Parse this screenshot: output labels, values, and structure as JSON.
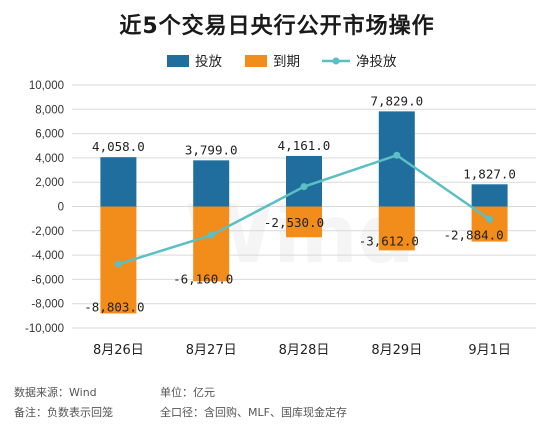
{
  "title": "近5个交易日央行公开市场操作",
  "watermark": "Wind",
  "footer": {
    "source": "数据来源：Wind",
    "unit": "单位：亿元",
    "note": "备注：负数表示回笼",
    "scope": "全口径：含回购、MLF、国库现金定存"
  },
  "colors": {
    "invest": "#1f6e9e",
    "expire": "#f28c1a",
    "net": "#5bbfc3",
    "grid": "#d9d9d9",
    "text": "#333333"
  },
  "chart_data": {
    "type": "bar",
    "categories": [
      "8月26日",
      "8月27日",
      "8月28日",
      "8月29日",
      "9月1日"
    ],
    "series": [
      {
        "name": "投放",
        "type": "bar",
        "values": [
          4058.0,
          3799.0,
          4161.0,
          7829.0,
          1827.0
        ]
      },
      {
        "name": "到期",
        "type": "bar",
        "values": [
          -8803.0,
          -6160.0,
          -2530.0,
          -3612.0,
          -2884.0
        ]
      },
      {
        "name": "净投放",
        "type": "line",
        "values": [
          -4745.0,
          -2361.0,
          1631.0,
          4217.0,
          -1057.0
        ]
      }
    ],
    "bar_labels": {
      "invest": [
        "4,058.0",
        "3,799.0",
        "4,161.0",
        "7,829.0",
        "1,827.0"
      ],
      "expire": [
        "-8,803.0",
        "-6,160.0",
        "-2,530.0",
        "-3,612.0",
        "-2,884.0"
      ]
    },
    "ylim": [
      -10000,
      10000
    ],
    "yticks": [
      10000,
      8000,
      6000,
      4000,
      2000,
      0,
      -2000,
      -4000,
      -6000,
      -8000,
      -10000
    ],
    "ytick_labels": [
      "10,000",
      "8,000",
      "6,000",
      "4,000",
      "2,000",
      "0",
      "-2,000",
      "-4,000",
      "-6,000",
      "-8,000",
      "-10,000"
    ],
    "legend": {
      "placement": "top",
      "items": [
        "投放",
        "到期",
        "净投放"
      ]
    },
    "grid": true
  }
}
